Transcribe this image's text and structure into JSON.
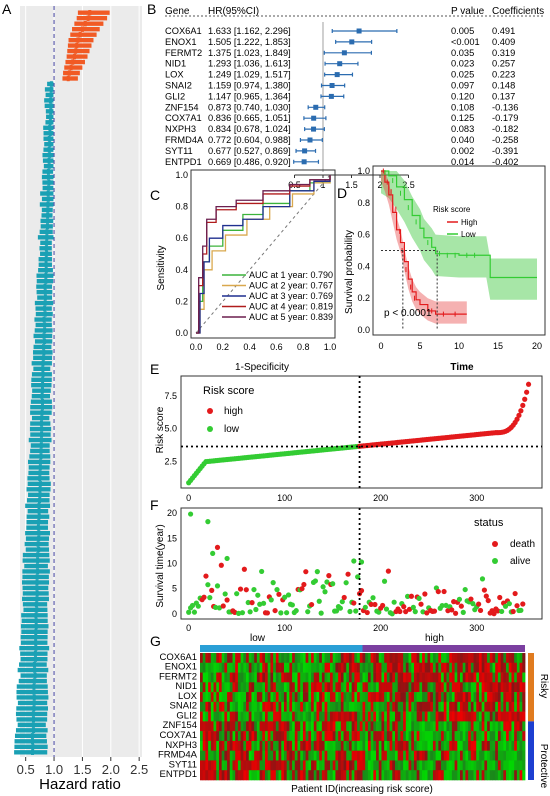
{
  "panel_labels": {
    "a": "A",
    "b": "B",
    "c": "C",
    "d": "D",
    "e": "E",
    "f": "F",
    "g": "G"
  },
  "colors": {
    "orange": "#f15a24",
    "teal": "#1aa0b4",
    "forest": "#2b6cb0",
    "red": "#e31a1c",
    "green": "#33cc33",
    "blue_bar": "#2a9fd6",
    "purple_bar": "#7b3fa0",
    "risky_bar": "#e07b1f",
    "protective_bar": "#1d3fd1"
  },
  "chart_data": [
    {
      "panel": "A",
      "type": "forest",
      "xlabel": "Hazard ratio",
      "xticks": [
        "0.5",
        "1.0",
        "1.5",
        "2.0",
        "2.5"
      ],
      "xlim": [
        0.4,
        2.55
      ],
      "reference_line": 1.0,
      "risky_count": 13,
      "protective_count": 123,
      "risky_hr": [
        1.63,
        1.6,
        1.55,
        1.5,
        1.46,
        1.42,
        1.4,
        1.38,
        1.36,
        1.33,
        1.3,
        1.27,
        1.25
      ],
      "protective_hr_range": [
        0.62,
        0.95
      ]
    },
    {
      "panel": "B",
      "type": "forest_table",
      "headers": {
        "gene": "Gene",
        "hr": "HR(95%CI)",
        "p": "P value",
        "coef": "Coefficients"
      },
      "rows": [
        {
          "gene": "COX6A1",
          "hr": "1.633 [1.162, 2.296]",
          "p": "0.005",
          "coef": "0.491",
          "est": 1.633,
          "lo": 1.162,
          "hi": 2.296
        },
        {
          "gene": "ENOX1",
          "hr": "1.505 [1.222, 1.853]",
          "p": "<0.001",
          "coef": "0.409",
          "est": 1.505,
          "lo": 1.222,
          "hi": 1.853
        },
        {
          "gene": "FERMT2",
          "hr": "1.375 [1.023, 1.849]",
          "p": "0.035",
          "coef": "0.319",
          "est": 1.375,
          "lo": 1.023,
          "hi": 1.849
        },
        {
          "gene": "NID1",
          "hr": "1.293 [1.036, 1.613]",
          "p": "0.023",
          "coef": "0.257",
          "est": 1.293,
          "lo": 1.036,
          "hi": 1.613
        },
        {
          "gene": "LOX",
          "hr": "1.249 [1.029, 1.517]",
          "p": "0.025",
          "coef": "0.223",
          "est": 1.249,
          "lo": 1.029,
          "hi": 1.517
        },
        {
          "gene": "SNAI2",
          "hr": "1.159 [0.974, 1.380]",
          "p": "0.097",
          "coef": "0.148",
          "est": 1.159,
          "lo": 0.974,
          "hi": 1.38
        },
        {
          "gene": "GLI2",
          "hr": "1.147 [0.965, 1.364]",
          "p": "0.120",
          "coef": "0.137",
          "est": 1.147,
          "lo": 0.965,
          "hi": 1.364
        },
        {
          "gene": "ZNF154",
          "hr": "0.873 [0.740, 1.030]",
          "p": "0.108",
          "coef": "-0.136",
          "est": 0.873,
          "lo": 0.74,
          "hi": 1.03
        },
        {
          "gene": "COX7A1",
          "hr": "0.836 [0.665, 1.051]",
          "p": "0.125",
          "coef": "-0.179",
          "est": 0.836,
          "lo": 0.665,
          "hi": 1.051
        },
        {
          "gene": "NXPH3",
          "hr": "0.834 [0.678, 1.024]",
          "p": "0.083",
          "coef": "-0.182",
          "est": 0.834,
          "lo": 0.678,
          "hi": 1.024
        },
        {
          "gene": "FRMD4A",
          "hr": "0.772 [0.604, 0.988]",
          "p": "0.040",
          "coef": "-0.258",
          "est": 0.772,
          "lo": 0.604,
          "hi": 0.988
        },
        {
          "gene": "SYT11",
          "hr": "0.677 [0.527, 0.869]",
          "p": "0.002",
          "coef": "-0.391",
          "est": 0.677,
          "lo": 0.527,
          "hi": 0.869
        },
        {
          "gene": "ENTPD1",
          "hr": "0.669 [0.486, 0.920]",
          "p": "0.014",
          "coef": "-0.402",
          "est": 0.669,
          "lo": 0.486,
          "hi": 0.92
        }
      ],
      "xticks": [
        0.5,
        1,
        1.5,
        2,
        2.5
      ],
      "xtick_labels": [
        "0.5",
        "1",
        "1.5",
        "2",
        "2.5"
      ]
    },
    {
      "panel": "C",
      "type": "line",
      "xlabel": "1-Specificity",
      "ylabel": "Sensitivity",
      "ticks": [
        "0.0",
        "0.2",
        "0.4",
        "0.6",
        "0.8",
        "1.0"
      ],
      "series": [
        {
          "name": "AUC at 1 year: 0.790",
          "color": "#3cb33c",
          "points": [
            [
              0,
              0
            ],
            [
              0.02,
              0.2
            ],
            [
              0.05,
              0.45
            ],
            [
              0.1,
              0.55
            ],
            [
              0.2,
              0.65
            ],
            [
              0.35,
              0.75
            ],
            [
              0.5,
              0.82
            ],
            [
              0.7,
              0.9
            ],
            [
              0.85,
              0.95
            ],
            [
              1,
              1
            ]
          ]
        },
        {
          "name": "AUC at 2 year: 0.767",
          "color": "#d9a84e",
          "points": [
            [
              0,
              0
            ],
            [
              0.03,
              0.15
            ],
            [
              0.06,
              0.4
            ],
            [
              0.12,
              0.52
            ],
            [
              0.22,
              0.62
            ],
            [
              0.38,
              0.72
            ],
            [
              0.55,
              0.8
            ],
            [
              0.72,
              0.88
            ],
            [
              0.88,
              0.95
            ],
            [
              1,
              1
            ]
          ]
        },
        {
          "name": "AUC at 3 year: 0.769",
          "color": "#1f2f8f",
          "points": [
            [
              0,
              0
            ],
            [
              0.03,
              0.25
            ],
            [
              0.06,
              0.45
            ],
            [
              0.1,
              0.6
            ],
            [
              0.2,
              0.68
            ],
            [
              0.35,
              0.72
            ],
            [
              0.5,
              0.8
            ],
            [
              0.7,
              0.9
            ],
            [
              0.88,
              0.96
            ],
            [
              1,
              1
            ]
          ]
        },
        {
          "name": "AUC at 4 year: 0.819",
          "color": "#b01c1c",
          "points": [
            [
              0,
              0
            ],
            [
              0.02,
              0.3
            ],
            [
              0.05,
              0.5
            ],
            [
              0.08,
              0.7
            ],
            [
              0.15,
              0.78
            ],
            [
              0.3,
              0.82
            ],
            [
              0.5,
              0.88
            ],
            [
              0.7,
              0.93
            ],
            [
              0.85,
              0.97
            ],
            [
              1,
              1
            ]
          ]
        },
        {
          "name": "AUC at 5 year: 0.839",
          "color": "#6b1f4f",
          "points": [
            [
              0,
              0
            ],
            [
              0.02,
              0.35
            ],
            [
              0.05,
              0.55
            ],
            [
              0.08,
              0.72
            ],
            [
              0.15,
              0.8
            ],
            [
              0.3,
              0.84
            ],
            [
              0.5,
              0.9
            ],
            [
              0.7,
              0.94
            ],
            [
              0.85,
              0.97
            ],
            [
              1,
              1
            ]
          ]
        }
      ]
    },
    {
      "panel": "D",
      "type": "line",
      "xlabel": "Time",
      "ylabel": "Survival probability",
      "xticks": [
        "0",
        "5",
        "10",
        "15",
        "20"
      ],
      "yticks": [
        "0.0",
        "0.2",
        "0.4",
        "0.6",
        "0.8",
        "1.0"
      ],
      "legend_title": "Risk score",
      "legend": [
        "High",
        "Low"
      ],
      "annotation": "p < 0.0001",
      "median_high": 2.8,
      "median_low": 7.2,
      "series": [
        {
          "name": "High",
          "color": "#e31a1c",
          "points": [
            [
              0,
              1
            ],
            [
              0.5,
              0.93
            ],
            [
              1,
              0.85
            ],
            [
              1.5,
              0.74
            ],
            [
              2,
              0.63
            ],
            [
              2.5,
              0.55
            ],
            [
              3,
              0.43
            ],
            [
              3.5,
              0.32
            ],
            [
              4,
              0.24
            ],
            [
              4.5,
              0.19
            ],
            [
              5,
              0.16
            ],
            [
              6,
              0.12
            ],
            [
              7,
              0.1
            ],
            [
              11,
              0.1
            ]
          ]
        },
        {
          "name": "Low",
          "color": "#33cc33",
          "points": [
            [
              0,
              1
            ],
            [
              1,
              0.97
            ],
            [
              2,
              0.9
            ],
            [
              3,
              0.82
            ],
            [
              4,
              0.72
            ],
            [
              5,
              0.64
            ],
            [
              5.5,
              0.58
            ],
            [
              6.5,
              0.52
            ],
            [
              7,
              0.48
            ],
            [
              10,
              0.47
            ],
            [
              13.5,
              0.47
            ],
            [
              14,
              0.33
            ],
            [
              20,
              0.33
            ]
          ]
        }
      ]
    },
    {
      "panel": "E",
      "type": "scatter",
      "ylabel": "Risk score",
      "legend_title": "Risk score",
      "legend": [
        "high",
        "low"
      ],
      "xticks": [
        "0",
        "100",
        "200",
        "300"
      ],
      "yticks": [
        "2.5",
        "5.0",
        "7.5"
      ],
      "xlim": [
        -8,
        368
      ],
      "ylim": [
        0.5,
        9
      ],
      "n": 356,
      "cutoff_index": 178,
      "cutoff_value": 3.65
    },
    {
      "panel": "F",
      "type": "scatter",
      "ylabel": "Survival time(year)",
      "legend_title": "status",
      "legend": [
        "death",
        "alive"
      ],
      "xticks": [
        "0",
        "100",
        "200",
        "300"
      ],
      "yticks": [
        "0",
        "5",
        "10",
        "15",
        "20"
      ],
      "xlim": [
        -8,
        368
      ],
      "ylim": [
        -1,
        21
      ],
      "cutoff_index": 178
    },
    {
      "panel": "G",
      "type": "heatmap",
      "xlabel": "Patient ID(increasing risk score)",
      "group_labels": [
        "low",
        "high"
      ],
      "side_labels": [
        "Risky",
        "Protective"
      ],
      "rows": [
        "COX6A1",
        "ENOX1",
        "FERMT2",
        "NID1",
        "LOX",
        "SNAI2",
        "GLI2",
        "ZNF154",
        "COX7A1",
        "NXPH3",
        "FRMD4A",
        "SYT11",
        "ENTPD1"
      ],
      "n_cols": 120
    }
  ]
}
